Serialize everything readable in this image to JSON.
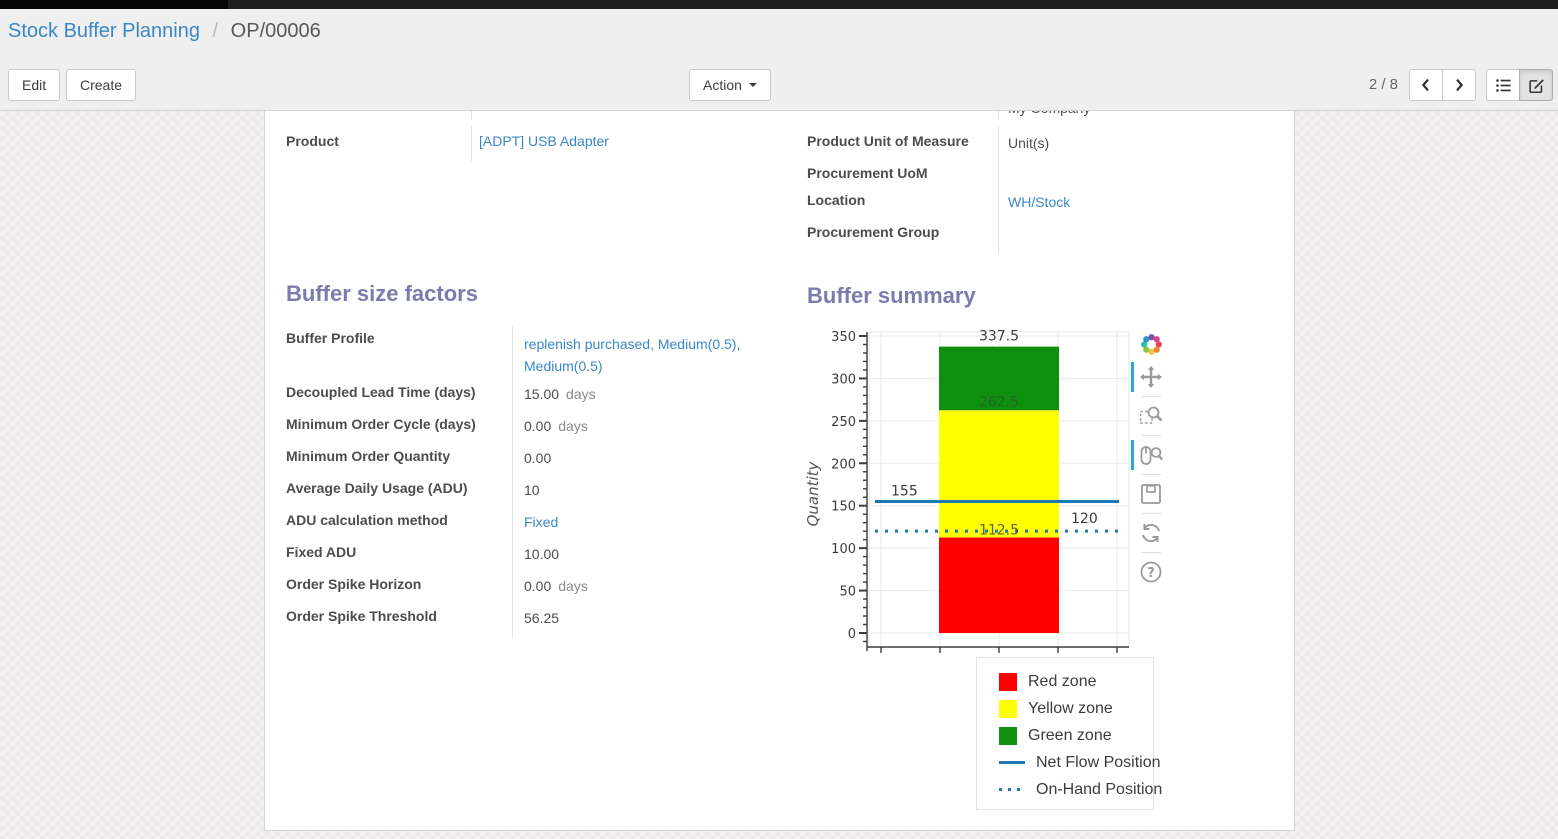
{
  "breadcrumb": {
    "parent": "Stock Buffer Planning",
    "separator": "/",
    "current": "OP/00006"
  },
  "control_panel": {
    "edit_label": "Edit",
    "create_label": "Create",
    "action_label": "Action",
    "pager": "2 / 8",
    "view_switcher": {
      "active_view": "form",
      "views": [
        "list",
        "form"
      ]
    }
  },
  "form": {
    "clipped_value_top": "My Company",
    "general": {
      "left": [
        {
          "label": "Product",
          "value": "[ADPT] USB Adapter"
        }
      ],
      "right": [
        {
          "label": "Product Unit of Measure",
          "value": "Unit(s)"
        },
        {
          "label": "Procurement UoM",
          "value": ""
        },
        {
          "label": "Location",
          "value": "WH/Stock"
        },
        {
          "label": "Procurement Group",
          "value": ""
        }
      ]
    },
    "buffer_size_factors": {
      "title": "Buffer size factors",
      "fields": [
        {
          "label": "Buffer Profile",
          "value": "replenish purchased, Medium(0.5), Medium(0.5)",
          "suffix": ""
        },
        {
          "label": "Decoupled Lead Time (days)",
          "value": "15.00",
          "suffix": "days"
        },
        {
          "label": "Minimum Order Cycle (days)",
          "value": "0.00",
          "suffix": "days"
        },
        {
          "label": "Minimum Order Quantity",
          "value": "0.00",
          "suffix": ""
        },
        {
          "label": "Average Daily Usage (ADU)",
          "value": "10",
          "suffix": ""
        },
        {
          "label": "ADU calculation method",
          "value": "Fixed",
          "suffix": ""
        },
        {
          "label": "Fixed ADU",
          "value": "10.00",
          "suffix": ""
        },
        {
          "label": "Order Spike Horizon",
          "value": "0.00",
          "suffix": "days"
        },
        {
          "label": "Order Spike Threshold",
          "value": "56.25",
          "suffix": ""
        }
      ]
    },
    "buffer_summary": {
      "title": "Buffer summary"
    }
  },
  "chart_data": {
    "type": "bar",
    "title": "Buffer summary",
    "xlabel": "",
    "ylabel": "Quantity",
    "ylim": [
      0,
      350
    ],
    "yticks": [
      0,
      50,
      100,
      150,
      200,
      250,
      300,
      350
    ],
    "grid": true,
    "zones": [
      {
        "name": "Red zone",
        "from": 0,
        "to": 112.5,
        "color": "#ff0000"
      },
      {
        "name": "Yellow zone",
        "from": 112.5,
        "to": 262.5,
        "color": "#ffff00"
      },
      {
        "name": "Green zone",
        "from": 262.5,
        "to": 337.5,
        "color": "#0e8f0e"
      }
    ],
    "lines": [
      {
        "name": "Net Flow Position",
        "value": 155,
        "style": "solid",
        "color": "#1f77b4"
      },
      {
        "name": "On-Hand Position",
        "value": 120,
        "style": "dotted",
        "color": "#1f77b4"
      }
    ],
    "annotations": [
      {
        "text": "337.5",
        "position": "top-of-green-zone"
      },
      {
        "text": "262.5",
        "position": "green-yellow-boundary"
      },
      {
        "text": "112.5",
        "position": "yellow-red-boundary"
      },
      {
        "text": "155",
        "position": "net-flow-line-left"
      },
      {
        "text": "120",
        "position": "on-hand-line-right"
      }
    ],
    "legend": {
      "position": "below-right",
      "items": [
        {
          "label": "Red zone",
          "swatch": "square",
          "color": "#ff0000"
        },
        {
          "label": "Yellow zone",
          "swatch": "square",
          "color": "#ffff00"
        },
        {
          "label": "Green zone",
          "swatch": "square",
          "color": "#0e8f0e"
        },
        {
          "label": "Net Flow Position",
          "swatch": "line-solid",
          "color": "#1f77b4"
        },
        {
          "label": "On-Hand Position",
          "swatch": "line-dotted",
          "color": "#1f77b4"
        }
      ]
    },
    "toolbar": [
      "bokeh-logo",
      "pan-tool",
      "box-zoom-tool",
      "wheel-zoom-tool",
      "save-tool",
      "reset-tool",
      "help-tool"
    ],
    "toolbar_active": [
      "pan-tool",
      "wheel-zoom-tool"
    ]
  },
  "colors": {
    "section_title": "#7c7bad",
    "link_blue": "#3a87c8",
    "toolbar_active_blue": "#28a8e0"
  }
}
